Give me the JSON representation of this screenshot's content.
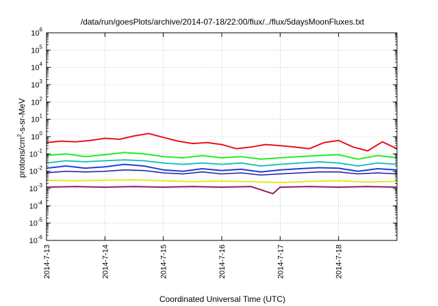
{
  "chart_data": {
    "type": "line",
    "title": "/data/run/goesPlots/archive/2014-07-18/22:00/flux/../flux/5daysMoonFluxes.txt",
    "xlabel": "Coordinated Universal Time (UTC)",
    "ylabel": "protons/cm²-s-sr-MeV",
    "ylabel_parts": {
      "pre": "protons/cm",
      "sup": "2",
      "post": "-s-sr-MeV"
    },
    "y_scale": "log",
    "ylim": [
      1e-06,
      1000000.0
    ],
    "xlim": [
      "2014-07-13",
      "2014-07-19"
    ],
    "grid": true,
    "legend": "none",
    "x_ticks": [
      "2014-7-13",
      "2014-7-14",
      "2014-7-15",
      "2014-7-16",
      "2014-7-17",
      "2014-7-18"
    ],
    "y_ticks": [
      {
        "base": "10",
        "exp": "6"
      },
      {
        "base": "10",
        "exp": "5"
      },
      {
        "base": "10",
        "exp": "4"
      },
      {
        "base": "10",
        "exp": "3"
      },
      {
        "base": "10",
        "exp": "2"
      },
      {
        "base": "10",
        "exp": "1"
      },
      {
        "base": "10",
        "exp": "0"
      },
      {
        "base": "10",
        "exp": "-1"
      },
      {
        "base": "10",
        "exp": "-2"
      },
      {
        "base": "10",
        "exp": "-3"
      },
      {
        "base": "10",
        "exp": "-4"
      },
      {
        "base": "10",
        "exp": "-5"
      },
      {
        "base": "10",
        "exp": "-6"
      }
    ],
    "series": [
      {
        "color": "#e8101a",
        "stroke_width": 2,
        "x": [
          "2014-07-13T00:00",
          "2014-07-13T06:00",
          "2014-07-13T12:00",
          "2014-07-13T18:00",
          "2014-07-14T00:00",
          "2014-07-14T06:00",
          "2014-07-14T12:00",
          "2014-07-14T18:00",
          "2014-07-15T00:00",
          "2014-07-15T06:00",
          "2014-07-15T12:00",
          "2014-07-15T18:00",
          "2014-07-16T00:00",
          "2014-07-16T06:00",
          "2014-07-16T12:00",
          "2014-07-16T18:00",
          "2014-07-17T00:00",
          "2014-07-17T06:00",
          "2014-07-17T12:00",
          "2014-07-17T18:00",
          "2014-07-18T00:00",
          "2014-07-18T06:00",
          "2014-07-18T12:00",
          "2014-07-18T18:00",
          "2014-07-19T00:00"
        ],
        "y": [
          0.45,
          0.55,
          0.5,
          0.6,
          0.8,
          0.7,
          1.1,
          1.5,
          0.9,
          0.55,
          0.4,
          0.45,
          0.35,
          0.2,
          0.25,
          0.35,
          0.3,
          0.25,
          0.2,
          0.45,
          0.6,
          0.25,
          0.15,
          0.5,
          0.2
        ]
      },
      {
        "color": "#22ee22",
        "stroke_width": 2,
        "x": [
          "2014-07-13T00:00",
          "2014-07-13T08:00",
          "2014-07-13T16:00",
          "2014-07-14T00:00",
          "2014-07-14T08:00",
          "2014-07-14T16:00",
          "2014-07-15T00:00",
          "2014-07-15T08:00",
          "2014-07-15T16:00",
          "2014-07-16T00:00",
          "2014-07-16T08:00",
          "2014-07-16T16:00",
          "2014-07-17T00:00",
          "2014-07-17T08:00",
          "2014-07-17T16:00",
          "2014-07-18T00:00",
          "2014-07-18T08:00",
          "2014-07-18T16:00",
          "2014-07-19T00:00"
        ],
        "y": [
          0.08,
          0.1,
          0.07,
          0.09,
          0.12,
          0.1,
          0.07,
          0.06,
          0.08,
          0.06,
          0.07,
          0.05,
          0.06,
          0.07,
          0.08,
          0.09,
          0.05,
          0.08,
          0.06
        ]
      },
      {
        "color": "#20c0c0",
        "stroke_width": 2,
        "x": [
          "2014-07-13T00:00",
          "2014-07-13T08:00",
          "2014-07-13T16:00",
          "2014-07-14T00:00",
          "2014-07-14T08:00",
          "2014-07-14T16:00",
          "2014-07-15T00:00",
          "2014-07-15T08:00",
          "2014-07-15T16:00",
          "2014-07-16T00:00",
          "2014-07-16T08:00",
          "2014-07-16T16:00",
          "2014-07-17T00:00",
          "2014-07-17T08:00",
          "2014-07-17T16:00",
          "2014-07-18T00:00",
          "2014-07-18T08:00",
          "2014-07-18T16:00",
          "2014-07-19T00:00"
        ],
        "y": [
          0.03,
          0.04,
          0.035,
          0.04,
          0.045,
          0.04,
          0.03,
          0.025,
          0.03,
          0.025,
          0.03,
          0.02,
          0.025,
          0.03,
          0.035,
          0.03,
          0.02,
          0.03,
          0.025
        ]
      },
      {
        "color": "#1f3be0",
        "stroke_width": 2,
        "x": [
          "2014-07-13T00:00",
          "2014-07-13T08:00",
          "2014-07-13T16:00",
          "2014-07-14T00:00",
          "2014-07-14T08:00",
          "2014-07-14T16:00",
          "2014-07-15T00:00",
          "2014-07-15T08:00",
          "2014-07-15T16:00",
          "2014-07-16T00:00",
          "2014-07-16T08:00",
          "2014-07-16T16:00",
          "2014-07-17T00:00",
          "2014-07-17T08:00",
          "2014-07-17T16:00",
          "2014-07-18T00:00",
          "2014-07-18T08:00",
          "2014-07-18T16:00",
          "2014-07-19T00:00"
        ],
        "y": [
          0.015,
          0.02,
          0.015,
          0.018,
          0.025,
          0.02,
          0.012,
          0.01,
          0.014,
          0.011,
          0.013,
          0.009,
          0.012,
          0.014,
          0.016,
          0.015,
          0.01,
          0.014,
          0.012
        ]
      },
      {
        "color": "#1a1aa0",
        "stroke_width": 1.5,
        "x": [
          "2014-07-13T00:00",
          "2014-07-13T08:00",
          "2014-07-13T16:00",
          "2014-07-14T00:00",
          "2014-07-14T08:00",
          "2014-07-14T16:00",
          "2014-07-15T00:00",
          "2014-07-15T08:00",
          "2014-07-15T16:00",
          "2014-07-16T00:00",
          "2014-07-16T08:00",
          "2014-07-16T16:00",
          "2014-07-17T00:00",
          "2014-07-17T08:00",
          "2014-07-17T16:00",
          "2014-07-18T00:00",
          "2014-07-18T08:00",
          "2014-07-18T16:00",
          "2014-07-19T00:00"
        ],
        "y": [
          0.008,
          0.01,
          0.009,
          0.01,
          0.012,
          0.011,
          0.008,
          0.007,
          0.009,
          0.007,
          0.008,
          0.006,
          0.007,
          0.008,
          0.009,
          0.009,
          0.007,
          0.008,
          0.007
        ]
      },
      {
        "color": "#e8e820",
        "stroke_width": 2,
        "x": [
          "2014-07-13T00:00",
          "2014-07-13T12:00",
          "2014-07-14T00:00",
          "2014-07-14T12:00",
          "2014-07-15T00:00",
          "2014-07-15T12:00",
          "2014-07-16T00:00",
          "2014-07-16T12:00",
          "2014-07-17T00:00",
          "2014-07-17T12:00",
          "2014-07-18T00:00",
          "2014-07-18T12:00",
          "2014-07-19T00:00"
        ],
        "y": [
          0.003,
          0.0028,
          0.003,
          0.0032,
          0.0028,
          0.0025,
          0.0027,
          0.0025,
          0.0022,
          0.0026,
          0.0028,
          0.0024,
          0.0026
        ]
      },
      {
        "color": "#8b1a6e",
        "stroke_width": 2,
        "x": [
          "2014-07-13T00:00",
          "2014-07-13T12:00",
          "2014-07-14T00:00",
          "2014-07-14T12:00",
          "2014-07-15T00:00",
          "2014-07-15T12:00",
          "2014-07-16T00:00",
          "2014-07-16T12:00",
          "2014-07-16T21:00",
          "2014-07-17T00:00",
          "2014-07-17T12:00",
          "2014-07-18T00:00",
          "2014-07-18T12:00",
          "2014-07-19T00:00"
        ],
        "y": [
          0.0012,
          0.0013,
          0.0012,
          0.0013,
          0.0012,
          0.0013,
          0.0012,
          0.0013,
          0.0005,
          0.0012,
          0.0013,
          0.0012,
          0.0013,
          0.0012
        ]
      }
    ]
  }
}
